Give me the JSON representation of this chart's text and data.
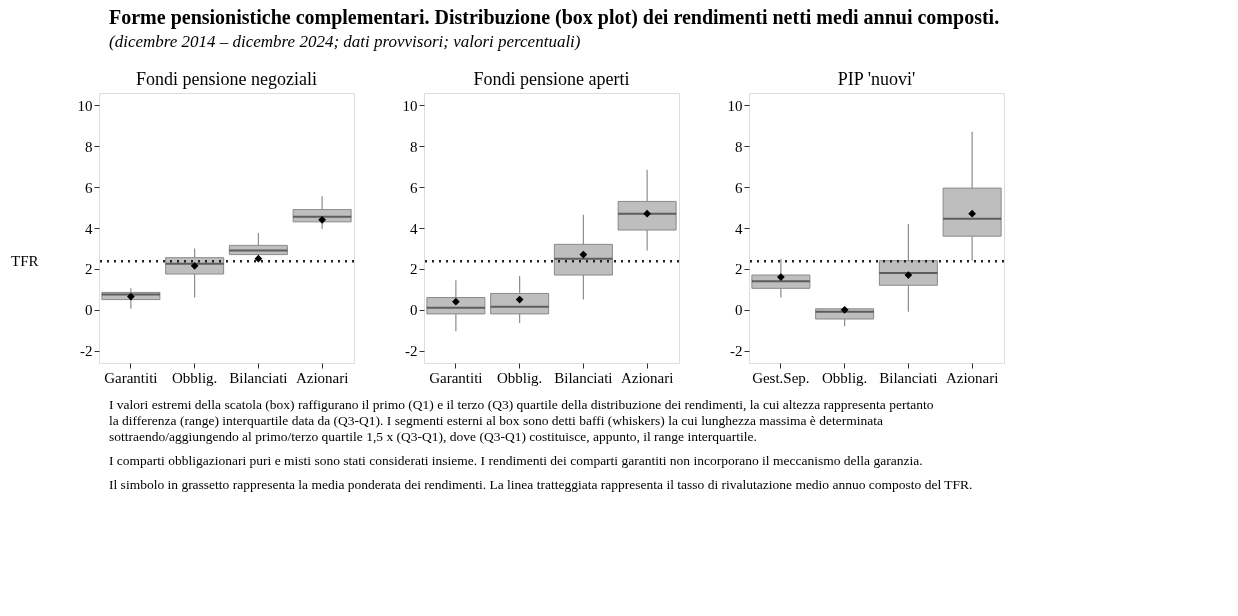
{
  "chart_data": [
    {
      "type": "other",
      "title": "Forme pensionistiche complementari. Distribuzione (box plot) dei rendimenti netti medi annui composti.",
      "subtitle": "(dicembre 2014 – dicembre 2024; dati provvisori; valori percentuali)"
    },
    {
      "type": "box",
      "title": "Fondi pensione negoziali",
      "categories": [
        "Garantiti",
        "Obblig.",
        "Bilanciati",
        "Azionari"
      ],
      "ylim": [
        -2.6,
        10.6
      ],
      "yticks": [
        -2,
        0,
        2,
        4,
        6,
        8,
        10
      ],
      "grid": false,
      "marker": "diamond",
      "ref_lines": [
        {
          "axis": "y",
          "value": 2.38,
          "label": "TFR",
          "line_style": "dotted",
          "color": "#222222"
        }
      ],
      "series": [
        {
          "color": "#bebebe",
          "boxes": [
            {
              "low": 0.05,
              "q1": 0.5,
              "median": 0.75,
              "q3": 0.85,
              "high": 1.05,
              "mean": 0.65
            },
            {
              "low": 0.6,
              "q1": 1.75,
              "median": 2.25,
              "q3": 2.55,
              "high": 3.0,
              "mean": 2.15
            },
            {
              "low": 2.7,
              "q1": 2.7,
              "median": 2.9,
              "q3": 3.15,
              "high": 3.75,
              "mean": 2.5
            },
            {
              "low": 3.95,
              "q1": 4.3,
              "median": 4.55,
              "q3": 4.9,
              "high": 5.55,
              "mean": 4.4
            }
          ]
        }
      ]
    },
    {
      "type": "box",
      "title": "Fondi pensione aperti",
      "categories": [
        "Garantiti",
        "Obblig.",
        "Bilanciati",
        "Azionari"
      ],
      "ylim": [
        -2.6,
        10.6
      ],
      "yticks": [
        -2,
        0,
        2,
        4,
        6,
        8,
        10
      ],
      "grid": false,
      "marker": "diamond",
      "ref_lines": [
        {
          "axis": "y",
          "value": 2.38,
          "line_style": "dotted",
          "color": "#222222"
        }
      ],
      "series": [
        {
          "color": "#bebebe",
          "boxes": [
            {
              "low": -1.05,
              "q1": -0.2,
              "median": 0.1,
              "q3": 0.6,
              "high": 1.45,
              "mean": 0.4
            },
            {
              "low": -0.65,
              "q1": -0.2,
              "median": 0.15,
              "q3": 0.8,
              "high": 1.65,
              "mean": 0.5
            },
            {
              "low": 0.5,
              "q1": 1.7,
              "median": 2.5,
              "q3": 3.2,
              "high": 4.65,
              "mean": 2.7
            },
            {
              "low": 2.9,
              "q1": 3.9,
              "median": 4.7,
              "q3": 5.3,
              "high": 6.85,
              "mean": 4.7
            }
          ]
        }
      ]
    },
    {
      "type": "box",
      "title": "PIP 'nuovi'",
      "categories": [
        "Gest.Sep.",
        "Obblig.",
        "Bilanciati",
        "Azionari"
      ],
      "ylim": [
        -2.6,
        10.6
      ],
      "yticks": [
        -2,
        0,
        2,
        4,
        6,
        8,
        10
      ],
      "grid": false,
      "marker": "diamond",
      "ref_lines": [
        {
          "axis": "y",
          "value": 2.38,
          "line_style": "dotted",
          "color": "#222222"
        }
      ],
      "series": [
        {
          "color": "#bebebe",
          "boxes": [
            {
              "low": 0.6,
              "q1": 1.05,
              "median": 1.4,
              "q3": 1.7,
              "high": 2.5,
              "mean": 1.6
            },
            {
              "low": -0.8,
              "q1": -0.45,
              "median": -0.1,
              "q3": 0.05,
              "high": 0.05,
              "mean": 0.0
            },
            {
              "low": -0.1,
              "q1": 1.2,
              "median": 1.8,
              "q3": 2.4,
              "high": 4.2,
              "mean": 1.7
            },
            {
              "low": 2.4,
              "q1": 3.6,
              "median": 4.45,
              "q3": 5.95,
              "high": 8.7,
              "mean": 4.7
            }
          ]
        }
      ]
    },
    {
      "type": "other",
      "annotations": [
        "I valori estremi della scatola (box) raffigurano il primo (Q1) e il terzo (Q3) quartile della distribuzione dei rendimenti, la cui altezza rappresenta pertanto la differenza (range) interquartile data da (Q3-Q1). I segmenti esterni al box sono detti baffi (whiskers) la cui lunghezza massima è determinata sottraendo/aggiungendo al primo/terzo quartile 1,5 x (Q3-Q1), dove (Q3-Q1) costituisce, appunto, il range interquartile.",
        "I comparti obbligazionari puri e misti sono stati considerati insieme. I rendimenti dei comparti garantiti non incorporano il meccanismo della garanzia.",
        "Il simbolo in grassetto rappresenta la media ponderata dei rendimenti. La linea tratteggiata rappresenta il tasso di rivalutazione medio annuo composto del TFR."
      ]
    }
  ]
}
